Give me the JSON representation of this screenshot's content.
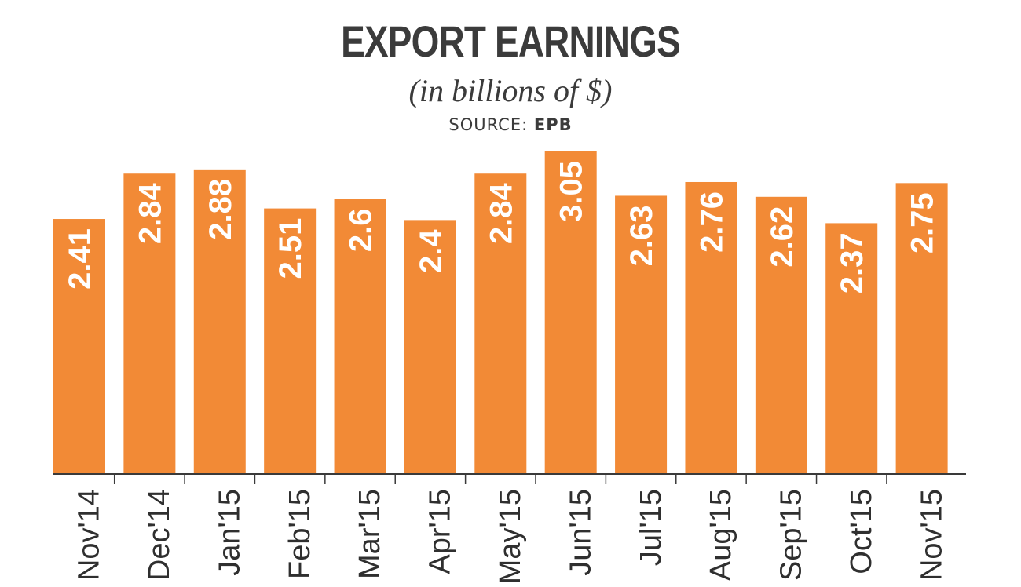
{
  "chart_data": {
    "type": "bar",
    "title": "EXPORT EARNINGS",
    "subtitle": "(in billions of $)",
    "source_label": "SOURCE:",
    "source_name": "EPB",
    "categories": [
      "Nov'14",
      "Dec'14",
      "Jan'15",
      "Feb'15",
      "Mar'15",
      "Apr'15",
      "May'15",
      "Jun'15",
      "Jul'15",
      "Aug'15",
      "Sep'15",
      "Oct'15",
      "Nov'15"
    ],
    "values": [
      2.41,
      2.84,
      2.88,
      2.51,
      2.6,
      2.4,
      2.84,
      3.05,
      2.63,
      2.76,
      2.62,
      2.37,
      2.75
    ],
    "value_labels": [
      "2.41",
      "2.84",
      "2.88",
      "2.51",
      "2.6",
      "2.4",
      "2.84",
      "3.05",
      "2.63",
      "2.76",
      "2.62",
      "2.37",
      "2.75"
    ],
    "ylim": [
      0,
      3.05
    ],
    "bar_color": "#f28a36",
    "grid": false,
    "legend": "none"
  }
}
